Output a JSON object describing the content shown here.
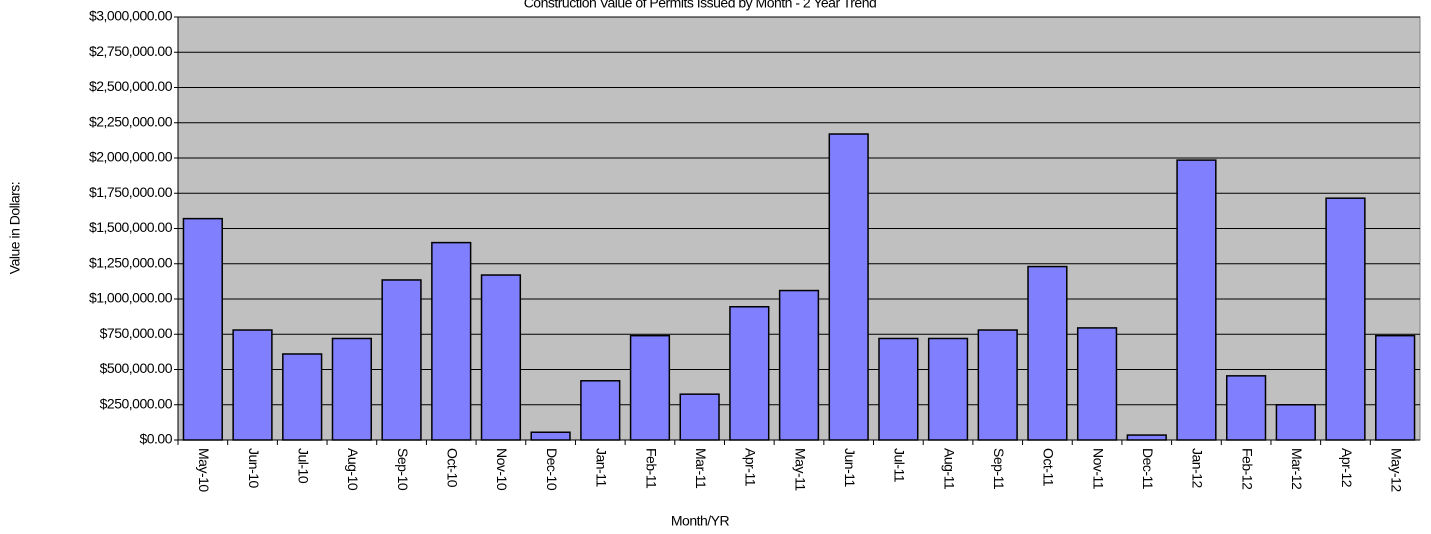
{
  "chart_data": {
    "type": "bar",
    "title": "Construction Value of Permits Issued by Month - 2 Year Trend",
    "x_label": "Month/YR",
    "y_label": "Value in Dollars:",
    "categories": [
      "May-10",
      "Jun-10",
      "Jul-10",
      "Aug-10",
      "Sep-10",
      "Oct-10",
      "Nov-10",
      "Dec-10",
      "Jan-11",
      "Feb-11",
      "Mar-11",
      "Apr-11",
      "May-11",
      "Jun-11",
      "Jul-11",
      "Aug-11",
      "Sep-11",
      "Oct-11",
      "Nov-11",
      "Dec-11",
      "Jan-12",
      "Feb-12",
      "Mar-12",
      "Apr-12",
      "May-12"
    ],
    "values": [
      1570000,
      780000,
      610000,
      720000,
      1135000,
      1400000,
      1170000,
      55000,
      420000,
      740000,
      325000,
      945000,
      1060000,
      2170000,
      720000,
      720000,
      780000,
      1230000,
      795000,
      35000,
      1985000,
      455000,
      250000,
      1715000,
      740000
    ],
    "color": "#8080ff",
    "ylim": [
      0,
      3000000
    ],
    "yticks": [
      {
        "value": 0,
        "label": "$0.00"
      },
      {
        "value": 250000,
        "label": "$250,000.00"
      },
      {
        "value": 500000,
        "label": "$500,000.00"
      },
      {
        "value": 750000,
        "label": "$750,000.00"
      },
      {
        "value": 1000000,
        "label": "$1,000,000.00"
      },
      {
        "value": 1250000,
        "label": "$1,250,000.00"
      },
      {
        "value": 1500000,
        "label": "$1,500,000.00"
      },
      {
        "value": 1750000,
        "label": "$1,750,000.00"
      },
      {
        "value": 2000000,
        "label": "$2,000,000.00"
      },
      {
        "value": 2250000,
        "label": "$2,250,000.00"
      },
      {
        "value": 2500000,
        "label": "$2,500,000.00"
      },
      {
        "value": 2750000,
        "label": "$2,750,000.00"
      },
      {
        "value": 3000000,
        "label": "$3,000,000.00"
      }
    ],
    "grid": true
  }
}
